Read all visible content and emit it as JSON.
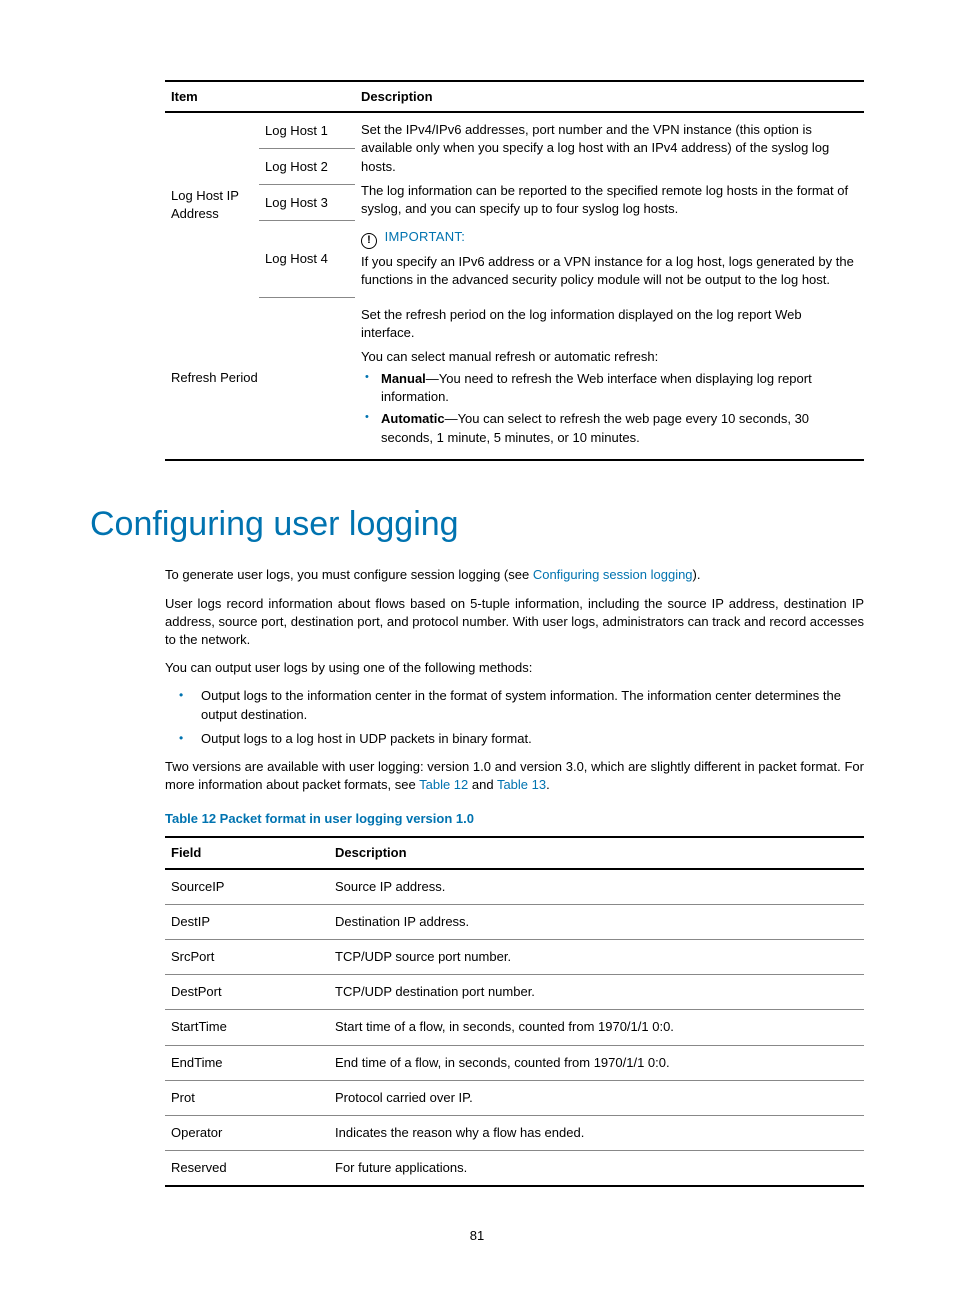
{
  "top_table": {
    "headers": [
      "Item",
      "Description"
    ],
    "row_group_label": "Log Host IP Address",
    "sub_rows": [
      "Log Host 1",
      "Log Host 2",
      "Log Host 3",
      "Log Host 4"
    ],
    "desc_p1": "Set the IPv4/IPv6 addresses, port number and the VPN instance (this option is available only when you specify a log host with an IPv4 address) of the syslog log hosts.",
    "desc_p2": "The log information can be reported to the specified remote log hosts in the format of syslog, and you can specify up to four syslog log hosts.",
    "important_label": "IMPORTANT:",
    "important_text": "If you specify an IPv6 address or a VPN instance for a log host, logs generated by the functions in the advanced security policy module will not be output to the log host.",
    "refresh_label": "Refresh Period",
    "refresh_p1": "Set the refresh period on the log information displayed on the log report Web interface.",
    "refresh_p2": "You can select manual refresh or automatic refresh:",
    "refresh_b1_bold": "Manual",
    "refresh_b1_rest": "—You need to refresh the Web interface when displaying log report information.",
    "refresh_b2_bold": "Automatic",
    "refresh_b2_rest": "—You can select to refresh the web page every 10 seconds, 30 seconds, 1 minute, 5 minutes, or 10 minutes."
  },
  "heading": "Configuring user logging",
  "para1_a": "To generate user logs, you must configure session logging (see ",
  "para1_link": "Configuring session logging",
  "para1_b": ").",
  "para2": "User logs record information about flows based on 5-tuple information, including the source IP address, destination IP address, source port, destination port, and protocol number. With user logs, administrators can track and record accesses to the network.",
  "para3": "You can output user logs by using one of the following methods:",
  "bullet1": "Output logs to the information center in the format of system information. The information center determines the output destination.",
  "bullet2": "Output logs to a log host in UDP packets in binary format.",
  "para4_a": "Two versions are available with user logging: version 1.0 and version 3.0, which are slightly different in packet format. For more information about packet formats, see ",
  "para4_link1": "Table 12",
  "para4_mid": " and ",
  "para4_link2": "Table 13",
  "para4_b": ".",
  "table12_caption": "Table 12 Packet format in user logging version 1.0",
  "table12": {
    "headers": [
      "Field",
      "Description"
    ],
    "rows": [
      [
        "SourceIP",
        "Source IP address."
      ],
      [
        "DestIP",
        "Destination IP address."
      ],
      [
        "SrcPort",
        "TCP/UDP source port number."
      ],
      [
        "DestPort",
        "TCP/UDP destination port number."
      ],
      [
        "StartTime",
        "Start time of a flow, in seconds, counted from 1970/1/1 0:0."
      ],
      [
        "EndTime",
        "End time of a flow, in seconds, counted from 1970/1/1 0:0."
      ],
      [
        "Prot",
        "Protocol carried over IP."
      ],
      [
        "Operator",
        "Indicates the reason why a flow has ended."
      ],
      [
        "Reserved",
        "For future applications."
      ]
    ]
  },
  "page_number": "81"
}
